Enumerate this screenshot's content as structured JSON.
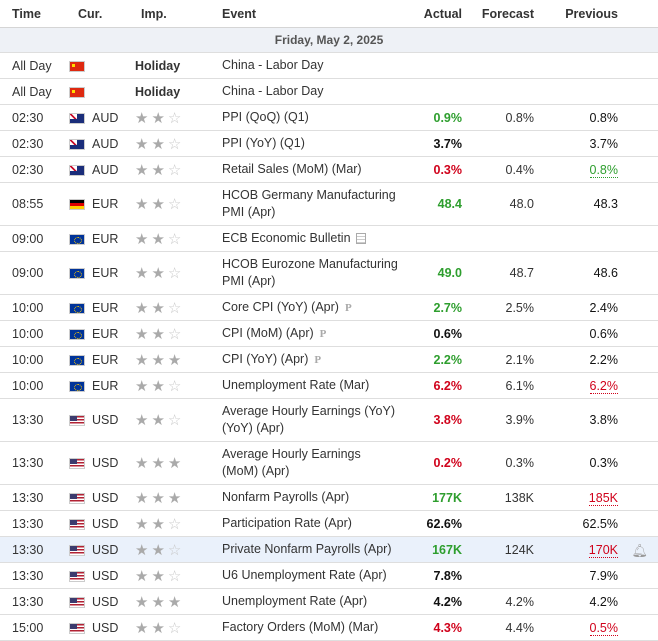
{
  "headers": {
    "time": "Time",
    "cur": "Cur.",
    "imp": "Imp.",
    "event": "Event",
    "actual": "Actual",
    "forecast": "Forecast",
    "previous": "Previous"
  },
  "date_label": "Friday, May 2, 2025",
  "holidays": [
    {
      "time": "All Day",
      "label": "Holiday",
      "event": "China - Labor Day",
      "flag": "cn"
    },
    {
      "time": "All Day",
      "label": "Holiday",
      "event": "China - Labor Day",
      "flag": "cn"
    }
  ],
  "events": [
    {
      "time": "02:30",
      "flag": "au",
      "cur": "AUD",
      "imp": 2,
      "event": "PPI (QoQ) (Q1)",
      "actual": "0.9%",
      "actual_color": "green",
      "forecast": "0.8%",
      "previous": "0.8%",
      "prev_color": "black",
      "prev_ul": false,
      "tall": false
    },
    {
      "time": "02:30",
      "flag": "au",
      "cur": "AUD",
      "imp": 2,
      "event": "PPI (YoY) (Q1)",
      "actual": "3.7%",
      "actual_color": "black",
      "forecast": "",
      "previous": "3.7%",
      "prev_color": "black",
      "prev_ul": false,
      "tall": false
    },
    {
      "time": "02:30",
      "flag": "au",
      "cur": "AUD",
      "imp": 2,
      "event": "Retail Sales (MoM) (Mar)",
      "actual": "0.3%",
      "actual_color": "red",
      "forecast": "0.4%",
      "previous": "0.8%",
      "prev_color": "green",
      "prev_ul": true,
      "tall": false
    },
    {
      "time": "08:55",
      "flag": "de",
      "cur": "EUR",
      "imp": 2,
      "event": "HCOB Germany Manufacturing PMI (Apr)",
      "actual": "48.4",
      "actual_color": "green",
      "forecast": "48.0",
      "previous": "48.3",
      "prev_color": "black",
      "prev_ul": false,
      "tall": true
    },
    {
      "time": "09:00",
      "flag": "eu",
      "cur": "EUR",
      "imp": 2,
      "event": "ECB Economic Bulletin",
      "actual": "",
      "actual_color": "black",
      "forecast": "",
      "previous": "",
      "prev_color": "black",
      "prev_ul": false,
      "tall": false,
      "doc": true
    },
    {
      "time": "09:00",
      "flag": "eu",
      "cur": "EUR",
      "imp": 2,
      "event": "HCOB Eurozone Manufacturing PMI (Apr)",
      "actual": "49.0",
      "actual_color": "green",
      "forecast": "48.7",
      "previous": "48.6",
      "prev_color": "black",
      "prev_ul": false,
      "tall": true
    },
    {
      "time": "10:00",
      "flag": "eu",
      "cur": "EUR",
      "imp": 2,
      "event": "Core CPI (YoY) (Apr)",
      "badge": "P",
      "actual": "2.7%",
      "actual_color": "green",
      "forecast": "2.5%",
      "previous": "2.4%",
      "prev_color": "black",
      "prev_ul": false,
      "tall": false
    },
    {
      "time": "10:00",
      "flag": "eu",
      "cur": "EUR",
      "imp": 2,
      "event": "CPI (MoM) (Apr)",
      "badge": "P",
      "actual": "0.6%",
      "actual_color": "black",
      "forecast": "",
      "previous": "0.6%",
      "prev_color": "black",
      "prev_ul": false,
      "tall": false
    },
    {
      "time": "10:00",
      "flag": "eu",
      "cur": "EUR",
      "imp": 3,
      "event": "CPI (YoY) (Apr)",
      "badge": "P",
      "actual": "2.2%",
      "actual_color": "green",
      "forecast": "2.1%",
      "previous": "2.2%",
      "prev_color": "black",
      "prev_ul": false,
      "tall": false
    },
    {
      "time": "10:00",
      "flag": "eu",
      "cur": "EUR",
      "imp": 2,
      "event": "Unemployment Rate (Mar)",
      "actual": "6.2%",
      "actual_color": "red",
      "forecast": "6.1%",
      "previous": "6.2%",
      "prev_color": "red",
      "prev_ul": true,
      "tall": false
    },
    {
      "time": "13:30",
      "flag": "us",
      "cur": "USD",
      "imp": 2,
      "event": "Average Hourly Earnings (YoY) (YoY) (Apr)",
      "actual": "3.8%",
      "actual_color": "red",
      "forecast": "3.9%",
      "previous": "3.8%",
      "prev_color": "black",
      "prev_ul": false,
      "tall": true
    },
    {
      "time": "13:30",
      "flag": "us",
      "cur": "USD",
      "imp": 3,
      "event": "Average Hourly Earnings (MoM) (Apr)",
      "actual": "0.2%",
      "actual_color": "red",
      "forecast": "0.3%",
      "previous": "0.3%",
      "prev_color": "black",
      "prev_ul": false,
      "tall": true
    },
    {
      "time": "13:30",
      "flag": "us",
      "cur": "USD",
      "imp": 3,
      "event": "Nonfarm Payrolls (Apr)",
      "actual": "177K",
      "actual_color": "green",
      "forecast": "138K",
      "previous": "185K",
      "prev_color": "red",
      "prev_ul": true,
      "tall": false
    },
    {
      "time": "13:30",
      "flag": "us",
      "cur": "USD",
      "imp": 2,
      "event": "Participation Rate (Apr)",
      "actual": "62.6%",
      "actual_color": "black",
      "forecast": "",
      "previous": "62.5%",
      "prev_color": "black",
      "prev_ul": false,
      "tall": false
    },
    {
      "time": "13:30",
      "flag": "us",
      "cur": "USD",
      "imp": 2,
      "event": "Private Nonfarm Payrolls (Apr)",
      "actual": "167K",
      "actual_color": "green",
      "forecast": "124K",
      "previous": "170K",
      "prev_color": "red",
      "prev_ul": true,
      "tall": false,
      "highlight": true
    },
    {
      "time": "13:30",
      "flag": "us",
      "cur": "USD",
      "imp": 2,
      "event": "U6 Unemployment Rate (Apr)",
      "actual": "7.8%",
      "actual_color": "black",
      "forecast": "",
      "previous": "7.9%",
      "prev_color": "black",
      "prev_ul": false,
      "tall": false
    },
    {
      "time": "13:30",
      "flag": "us",
      "cur": "USD",
      "imp": 3,
      "event": "Unemployment Rate (Apr)",
      "actual": "4.2%",
      "actual_color": "black",
      "forecast": "4.2%",
      "previous": "4.2%",
      "prev_color": "black",
      "prev_ul": false,
      "tall": false
    },
    {
      "time": "15:00",
      "flag": "us",
      "cur": "USD",
      "imp": 2,
      "event": "Factory Orders (MoM) (Mar)",
      "actual": "4.3%",
      "actual_color": "red",
      "forecast": "4.4%",
      "previous": "0.5%",
      "prev_color": "red",
      "prev_ul": true,
      "tall": false
    }
  ],
  "icons": {
    "star": "star-icon",
    "bell": "bell-plus-icon",
    "doc": "document-icon"
  },
  "colors": {
    "green": "#2e9e2e",
    "red": "#d0021b",
    "highlight": "#eaf1fb",
    "date_bg": "#eef1f6"
  }
}
